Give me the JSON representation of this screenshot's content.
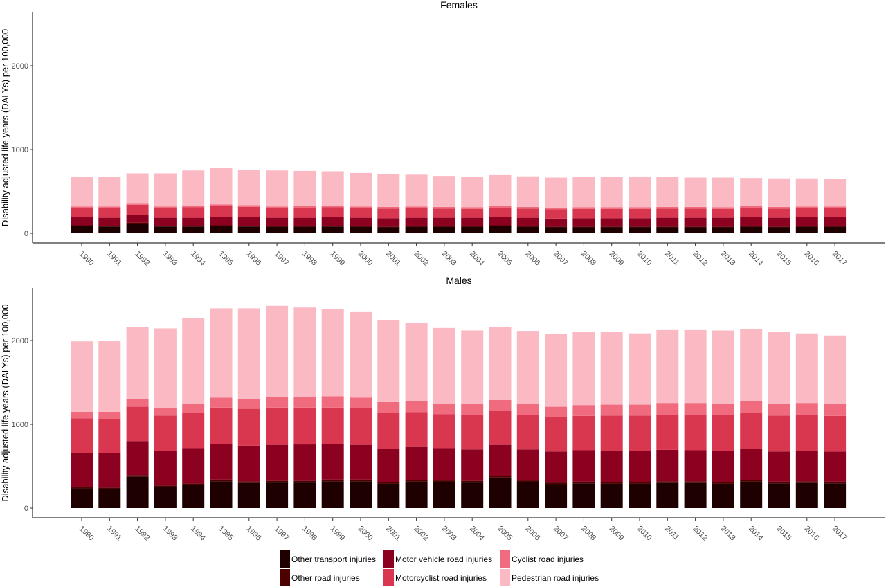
{
  "chart_data": [
    {
      "type": "bar",
      "stacked": true,
      "title": "Females",
      "ylabel": "Disability adjusted life years (DALYs) per 100,000",
      "xlabel": "",
      "ylim": [
        0,
        2600
      ],
      "yticks": [
        0,
        1000,
        2000
      ],
      "grid": false,
      "categories": [
        "1990",
        "1991",
        "1992",
        "1993",
        "1994",
        "1995",
        "1996",
        "1997",
        "1998",
        "1999",
        "2000",
        "2001",
        "2002",
        "2003",
        "2004",
        "2005",
        "2006",
        "2007",
        "2008",
        "2009",
        "2010",
        "2011",
        "2012",
        "2013",
        "2014",
        "2015",
        "2016",
        "2017"
      ],
      "series": [
        {
          "name": "Other transport injuries",
          "values": [
            85,
            80,
            115,
            80,
            80,
            85,
            80,
            75,
            75,
            80,
            75,
            70,
            75,
            75,
            75,
            85,
            75,
            70,
            70,
            70,
            70,
            70,
            70,
            70,
            75,
            70,
            75,
            75
          ]
        },
        {
          "name": "Other road injuries",
          "values": [
            10,
            10,
            10,
            10,
            10,
            10,
            10,
            10,
            10,
            10,
            10,
            10,
            10,
            10,
            10,
            10,
            10,
            10,
            10,
            10,
            10,
            10,
            10,
            10,
            10,
            10,
            10,
            10
          ]
        },
        {
          "name": "Motor vehicle road injuries",
          "values": [
            95,
            95,
            95,
            95,
            95,
            100,
            100,
            100,
            100,
            100,
            100,
            100,
            100,
            100,
            100,
            100,
            100,
            95,
            100,
            100,
            100,
            105,
            105,
            105,
            105,
            105,
            105,
            105
          ]
        },
        {
          "name": "Motorcyclist road injuries",
          "values": [
            110,
            115,
            120,
            115,
            125,
            130,
            125,
            115,
            120,
            120,
            115,
            115,
            115,
            110,
            105,
            110,
            110,
            110,
            110,
            110,
            110,
            110,
            110,
            105,
            115,
            110,
            110,
            110
          ]
        },
        {
          "name": "Cyclist road injuries",
          "values": [
            20,
            20,
            20,
            20,
            20,
            20,
            20,
            20,
            20,
            20,
            20,
            20,
            20,
            20,
            20,
            20,
            20,
            20,
            20,
            20,
            20,
            20,
            20,
            20,
            20,
            20,
            20,
            20
          ]
        },
        {
          "name": "Pedestrian road injuries",
          "values": [
            350,
            350,
            355,
            395,
            420,
            435,
            425,
            430,
            420,
            410,
            400,
            390,
            380,
            370,
            365,
            370,
            365,
            360,
            365,
            365,
            365,
            355,
            350,
            355,
            335,
            340,
            335,
            325
          ]
        }
      ]
    },
    {
      "type": "bar",
      "stacked": true,
      "title": "Males",
      "ylabel": "Disability adjusted life years (DALYs) per 100,000",
      "xlabel": "",
      "ylim": [
        0,
        2600
      ],
      "yticks": [
        0,
        1000,
        2000
      ],
      "grid": false,
      "categories": [
        "1990",
        "1991",
        "1992",
        "1993",
        "1994",
        "1995",
        "1996",
        "1997",
        "1998",
        "1999",
        "2000",
        "2001",
        "2002",
        "2003",
        "2004",
        "2005",
        "2006",
        "2007",
        "2008",
        "2009",
        "2010",
        "2011",
        "2012",
        "2013",
        "2014",
        "2015",
        "2016",
        "2017"
      ],
      "series": [
        {
          "name": "Other transport injuries",
          "values": [
            235,
            225,
            375,
            250,
            275,
            320,
            300,
            305,
            305,
            320,
            320,
            290,
            315,
            310,
            305,
            365,
            310,
            285,
            295,
            290,
            290,
            300,
            300,
            290,
            315,
            295,
            300,
            295
          ]
        },
        {
          "name": "Other road injuries",
          "values": [
            20,
            20,
            20,
            20,
            20,
            20,
            20,
            20,
            20,
            20,
            20,
            20,
            20,
            20,
            20,
            20,
            20,
            20,
            20,
            20,
            20,
            20,
            20,
            20,
            20,
            20,
            20,
            20
          ]
        },
        {
          "name": "Motor vehicle road injuries",
          "values": [
            405,
            415,
            405,
            410,
            420,
            425,
            425,
            430,
            435,
            425,
            415,
            400,
            395,
            385,
            375,
            370,
            370,
            370,
            375,
            375,
            375,
            375,
            370,
            370,
            370,
            360,
            360,
            360
          ]
        },
        {
          "name": "Motorcyclist road injuries",
          "values": [
            410,
            405,
            410,
            425,
            425,
            435,
            440,
            445,
            440,
            435,
            435,
            425,
            415,
            405,
            410,
            405,
            410,
            410,
            410,
            420,
            420,
            420,
            425,
            430,
            430,
            430,
            430,
            425
          ]
        },
        {
          "name": "Cyclist road injuries",
          "values": [
            80,
            85,
            90,
            95,
            110,
            120,
            120,
            130,
            130,
            135,
            130,
            130,
            130,
            130,
            130,
            130,
            130,
            125,
            130,
            130,
            130,
            140,
            140,
            140,
            140,
            145,
            145,
            145
          ]
        },
        {
          "name": "Pedestrian road injuries",
          "values": [
            840,
            845,
            860,
            945,
            1015,
            1065,
            1080,
            1085,
            1065,
            1040,
            1020,
            975,
            935,
            900,
            880,
            870,
            875,
            865,
            870,
            865,
            850,
            870,
            870,
            870,
            865,
            855,
            830,
            815
          ]
        }
      ]
    }
  ],
  "colors": {
    "Other transport injuries": "#1f0000",
    "Other road injuries": "#4d0000",
    "Motor vehicle road injuries": "#8c0020",
    "Motorcyclist road injuries": "#d93650",
    "Cyclist road injuries": "#f06b7e",
    "Pedestrian road injuries": "#fbb9c3"
  },
  "legend": {
    "items": [
      {
        "label": "Other transport injuries",
        "color": "#1f0000"
      },
      {
        "label": "Other road injuries",
        "color": "#4d0000"
      },
      {
        "label": "Motor vehicle road injuries",
        "color": "#8c0020"
      },
      {
        "label": "Motorcyclist road injuries",
        "color": "#d93650"
      },
      {
        "label": "Cyclist road injuries",
        "color": "#f06b7e"
      },
      {
        "label": "Pedestrian road injuries",
        "color": "#fbb9c3"
      }
    ]
  }
}
